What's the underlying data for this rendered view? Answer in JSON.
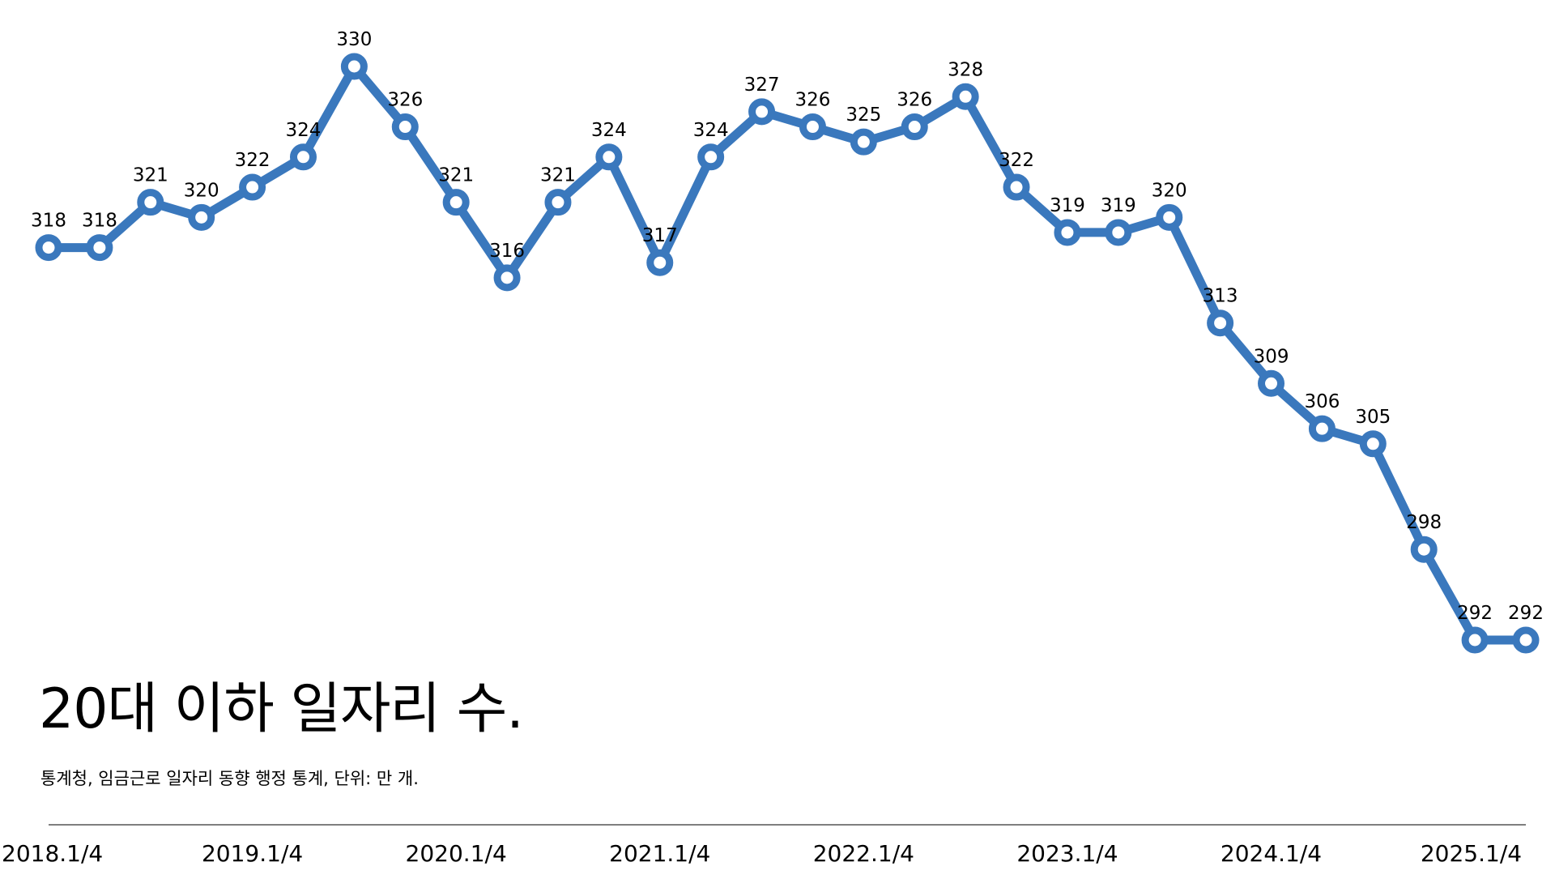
{
  "chart_data": {
    "type": "line",
    "title": "20대 이하 일자리 수.",
    "subtitle": "통계청, 임금근로 일자리 동향 행정 통계, 단위: 만 개.",
    "x_tick_labels": [
      "2018.1/4",
      "2019.1/4",
      "2020.1/4",
      "2021.1/4",
      "2022.1/4",
      "2023.1/4",
      "2024.1/4",
      "2025.1/4"
    ],
    "x": [
      "2018.1/4",
      "2018.2/4",
      "2018.3/4",
      "2018.4/4",
      "2019.1/4",
      "2019.2/4",
      "2019.3/4",
      "2019.4/4",
      "2020.1/4",
      "2020.2/4",
      "2020.3/4",
      "2020.4/4",
      "2021.1/4",
      "2021.2/4",
      "2021.3/4",
      "2021.4/4",
      "2022.1/4",
      "2022.2/4",
      "2022.3/4",
      "2022.4/4",
      "2023.1/4",
      "2023.2/4",
      "2023.3/4",
      "2023.4/4",
      "2024.1/4",
      "2024.2/4",
      "2024.3/4",
      "2024.4/4",
      "2025.1/4",
      "2025.2/4"
    ],
    "values": [
      318,
      318,
      321,
      320,
      322,
      324,
      330,
      326,
      321,
      316,
      321,
      324,
      317,
      324,
      327,
      326,
      325,
      326,
      328,
      322,
      319,
      319,
      320,
      313,
      309,
      306,
      305,
      298,
      292,
      292
    ],
    "ylim": [
      290,
      331
    ],
    "grid": false,
    "colors": {
      "line": "#3a78bd",
      "marker_fill": "#ffffff",
      "baseline": "#555555"
    }
  }
}
